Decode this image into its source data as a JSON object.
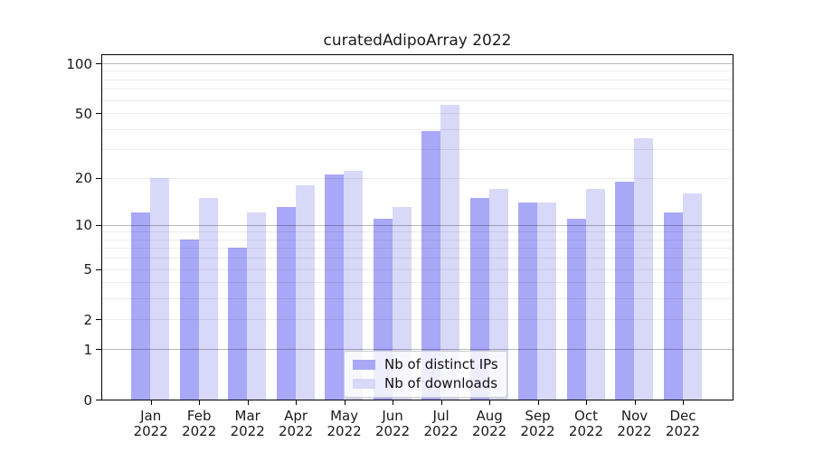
{
  "chart_data": {
    "type": "bar",
    "title": "curatedAdipoArray 2022",
    "categories": [
      "Jan",
      "Feb",
      "Mar",
      "Apr",
      "May",
      "Jun",
      "Jul",
      "Aug",
      "Sep",
      "Oct",
      "Nov",
      "Dec"
    ],
    "year": "2022",
    "series": [
      {
        "name": "Nb of distinct IPs",
        "color": "#a8a8f7",
        "values": [
          12,
          8,
          7,
          13,
          21,
          11,
          39,
          15,
          14,
          11,
          19,
          12
        ]
      },
      {
        "name": "Nb of downloads",
        "color": "#d8d8f9",
        "values": [
          20,
          15,
          12,
          18,
          22,
          13,
          56,
          17,
          14,
          17,
          35,
          16
        ]
      }
    ],
    "yticks": [
      0,
      1,
      2,
      5,
      10,
      20,
      50,
      100
    ],
    "yscale": "log10(1+x)",
    "ylim": [
      0,
      113
    ],
    "grid": true,
    "legend_position": "bottom-center"
  }
}
